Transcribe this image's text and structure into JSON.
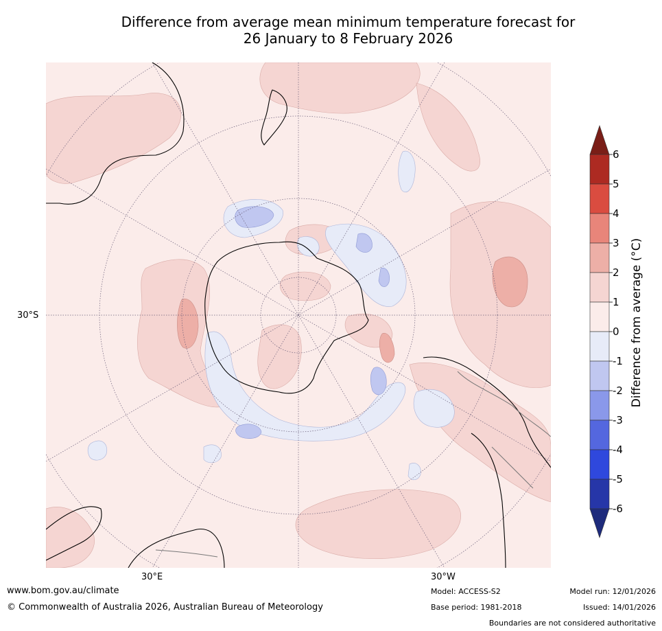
{
  "title": {
    "line1": "Difference from average mean minimum temperature forecast for",
    "line2": "26 January to 8 February 2026"
  },
  "map": {
    "projection": "south-polar-stereographic",
    "lat_label": "30°S",
    "lon_labels": [
      "30°E",
      "30°W"
    ]
  },
  "colorbar": {
    "label": "Difference from average (°C)",
    "ticks": [
      "6",
      "5",
      "4",
      "3",
      "2",
      "1",
      "0",
      "-1",
      "-2",
      "-3",
      "-4",
      "-5",
      "-6"
    ],
    "colors": [
      "#7a1e17",
      "#ad2a22",
      "#da4c40",
      "#e8857a",
      "#edafa7",
      "#f5d5d2",
      "#fbecea",
      "#e7ebf8",
      "#c0c7f0",
      "#8a98ea",
      "#5467df",
      "#2f48dd",
      "#2636a8",
      "#1e2b7c"
    ]
  },
  "footer": {
    "website": "www.bom.gov.au/climate",
    "copyright": "© Commonwealth of Australia 2026, Australian Bureau of Meteorology",
    "model": "Model: ACCESS-S2",
    "base_period": "Base period: 1981-2018",
    "model_run": "Model run: 12/01/2026",
    "issued": "Issued: 14/01/2026",
    "disclaimer": "Boundaries are not considered authoritative"
  }
}
